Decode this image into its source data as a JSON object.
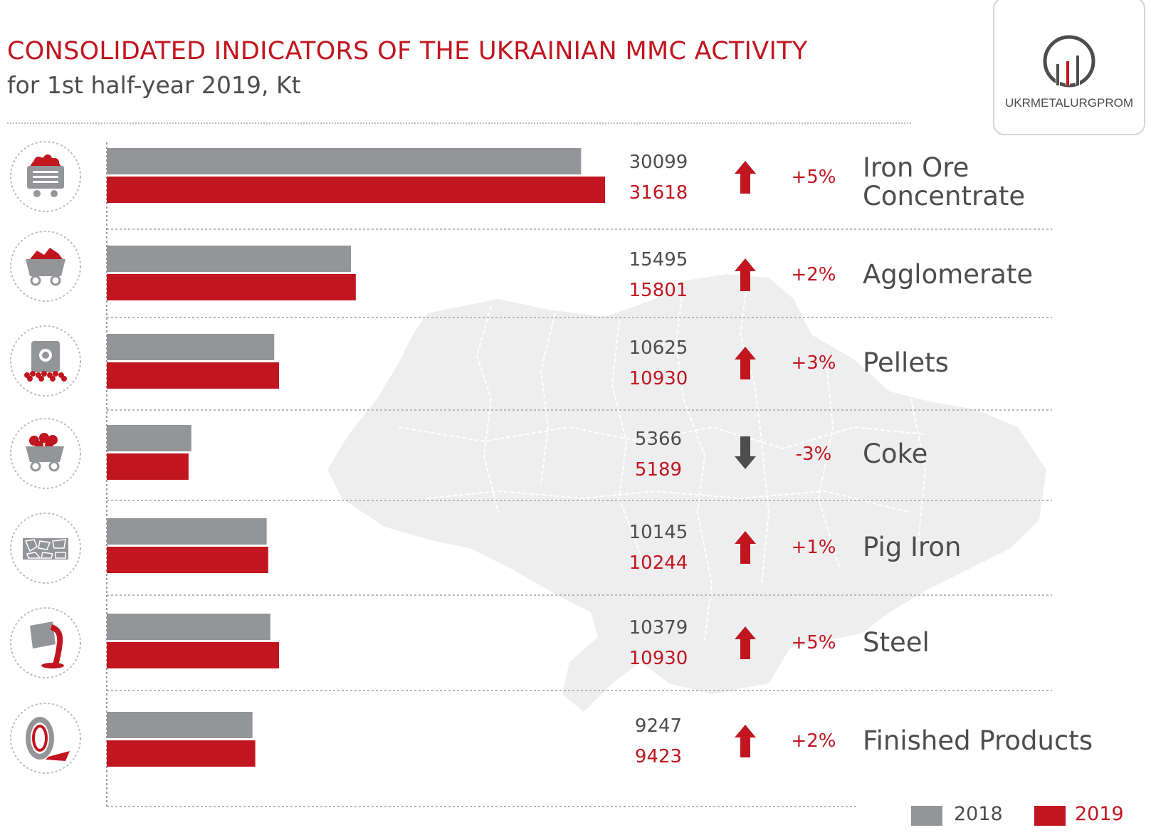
{
  "header": {
    "title": "CONSOLIDATED INDICATORS OF THE UKRAINIAN MMC ACTIVITY",
    "subtitle": "for 1st half-year 2019, Kt",
    "logo_text": "UKRMETALURGPROM"
  },
  "colors": {
    "series_2018": "#939598",
    "series_2019": "#c1151f",
    "accent": "#c1151f",
    "value_2018_text": "#4d4d4d",
    "label_text": "#4d4d4d",
    "arrow_down": "#4d4d4d",
    "map": "#eeeeef"
  },
  "chart_data": {
    "type": "bar",
    "orientation": "horizontal",
    "categories": [
      "Iron Ore Concentrate",
      "Agglomerate",
      "Pellets",
      "Coke",
      "Pig Iron",
      "Steel",
      "Finished Products"
    ],
    "icons": [
      "ore-wagon-icon",
      "mine-cart-icon",
      "pellets-bag-icon",
      "coke-cart-icon",
      "pig-iron-icon",
      "ladle-pour-icon",
      "coil-icon"
    ],
    "series": [
      {
        "name": "2018",
        "values": [
          30099,
          15495,
          10625,
          5366,
          10145,
          10379,
          9247
        ]
      },
      {
        "name": "2019",
        "values": [
          31618,
          15801,
          10930,
          5189,
          10244,
          10930,
          9423
        ]
      }
    ],
    "changes": [
      "+5%",
      "+2%",
      "+3%",
      "-3%",
      "+1%",
      "+5%",
      "+2%"
    ],
    "directions": [
      "up",
      "up",
      "up",
      "down",
      "up",
      "up",
      "up"
    ],
    "xlim": [
      0,
      31618
    ],
    "grid": false,
    "legend_position": "bottom-right"
  }
}
